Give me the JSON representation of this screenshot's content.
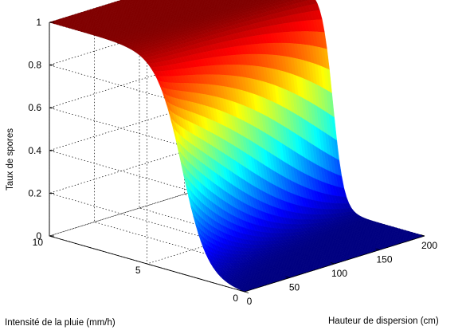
{
  "chart_data": {
    "type": "surface3d",
    "title": "",
    "xlabel": "Hauteur de dispersion (cm)",
    "ylabel": "Intensité de la pluie (mm/h)",
    "zlabel": "Taux de spores",
    "xlim": [
      0,
      200
    ],
    "ylim": [
      0,
      10
    ],
    "zlim": [
      0,
      1
    ],
    "x_ticks": [
      0,
      50,
      100,
      150,
      200
    ],
    "y_ticks": [
      0,
      5,
      10
    ],
    "z_ticks": [
      0,
      0.2,
      0.4,
      0.6,
      0.8,
      1
    ],
    "grid": true,
    "colormap": "jet",
    "description_of_values": "Surface rises from 0 at low rain intensity (y≈0) to a plateau of 1 for y≥~6 mm/h; slight decrease with dispersion height near the transition",
    "surface_samples": [
      {
        "y": 0,
        "x": 0,
        "z": 0.0
      },
      {
        "y": 1,
        "x": 0,
        "z": 0.05
      },
      {
        "y": 2,
        "x": 0,
        "z": 0.2
      },
      {
        "y": 3,
        "x": 0,
        "z": 0.45
      },
      {
        "y": 4,
        "x": 0,
        "z": 0.7
      },
      {
        "y": 5,
        "x": 0,
        "z": 0.88
      },
      {
        "y": 6,
        "x": 0,
        "z": 1.0
      },
      {
        "y": 10,
        "x": 0,
        "z": 1.0
      },
      {
        "y": 6,
        "x": 200,
        "z": 1.0
      },
      {
        "y": 5,
        "x": 200,
        "z": 0.7
      },
      {
        "y": 4,
        "x": 200,
        "z": 0.1
      },
      {
        "y": 3,
        "x": 200,
        "z": 0.0
      },
      {
        "y": 0,
        "x": 200,
        "z": 0.0
      }
    ]
  }
}
